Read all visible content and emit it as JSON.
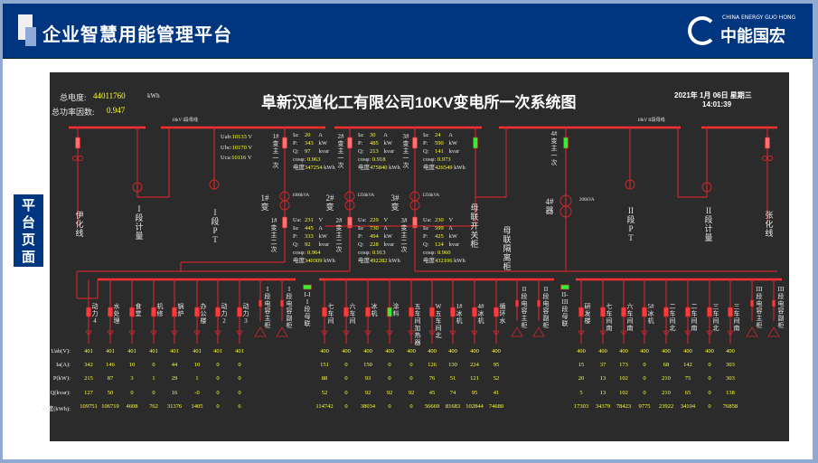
{
  "header": {
    "app_title": "企业智慧用能管理平台",
    "logo_en": "CHINA ENERGY GUO HONG",
    "logo_cn": "中能国宏"
  },
  "side_label": "平台页面",
  "diagram": {
    "title": "阜新汉道化工有限公司10KV变电所一次系统图",
    "total_energy_label": "总电度:",
    "total_energy": "44011760",
    "total_energy_unit": "kWh",
    "pf_label": "总功率因数:",
    "pf": "0.947",
    "date": "2021年 1月 06日 星期三",
    "time": "14:01:39",
    "bus1_label": "10kV I段母线",
    "bus2_label": "10kV II段母线",
    "pt1": {
      "Uab": "10133",
      "Ubc": "10170",
      "Uca": "10116",
      "unit": "V"
    },
    "top_feeders": [
      "伊化线",
      "I段计量",
      "I段PT",
      "母联开关柜",
      "母联隔离柜",
      "II段PT",
      "II段计量",
      "张化线",
      "4#器"
    ],
    "transformers": [
      {
        "name": "1#变",
        "cap": "1000kVA",
        "pri_label": "1#变主一次",
        "Ia": "20",
        "P": "343",
        "Q": "97",
        "cos": "0.963",
        "E": "347254",
        "sec_label": "1#变主二次",
        "Ua": "231",
        "Is": "445",
        "Ps": "333",
        "Qs": "92",
        "coss": "0.964",
        "Es": "340309"
      },
      {
        "name": "2#变",
        "cap": "1250kVA",
        "pri_label": "2#变主一次",
        "Ia": "30",
        "P": "485",
        "Q": "213",
        "cos": "0.918",
        "E": "475840",
        "sec_label": "2#变主二次",
        "Ua": "229",
        "Is": "730",
        "Ps": "494",
        "Qs": "228",
        "coss": "0.913",
        "Es": "492282"
      },
      {
        "name": "3#变",
        "cap": "1250kVA",
        "pri_label": "3#变主一次",
        "Ia": "24",
        "P": "590",
        "Q": "141",
        "cos": "0.973",
        "E": "426549",
        "sec_label": "3#变主二次",
        "Ua": "230",
        "Is": "599",
        "Ps": "425",
        "Qs": "124",
        "coss": "0.960",
        "Es": "432106"
      }
    ],
    "t4": {
      "pri_label": "4#变主一次",
      "cap": "200kVA"
    },
    "units": {
      "A": "A",
      "kW": "kW",
      "kvar": "kvar",
      "V": "V",
      "kWh": "kWh",
      "Ua": "Ua:",
      "Ia": "Ia:",
      "P": "P:",
      "Q": "Q:",
      "cos": "cosφ:",
      "E": "电度",
      "Uab": "Uab:",
      "Ubc": "Ubc:",
      "Uca": "Uca:"
    },
    "ties": [
      "I-II段母联",
      "II-III段母联"
    ],
    "capacitors": [
      "I段电容主柜",
      "I段电容副柜",
      "II段电容主柜",
      "II段电容副柜",
      "III段电容主柜",
      "III段电容副柜"
    ],
    "feeders": [
      {
        "name": "动力4",
        "state": "on"
      },
      {
        "name": "水处理",
        "state": "on"
      },
      {
        "name": "食堂",
        "state": "on"
      },
      {
        "name": "机修",
        "state": "on"
      },
      {
        "name": "锅炉",
        "state": "on"
      },
      {
        "name": "办公楼",
        "state": "on"
      },
      {
        "name": "动力2",
        "state": "on"
      },
      {
        "name": "动力3",
        "state": "on"
      },
      {
        "name": "七车间",
        "state": "on"
      },
      {
        "name": "六车间",
        "state": "on"
      },
      {
        "name": "冰机",
        "state": "on"
      },
      {
        "name": "涂料",
        "state": "off"
      },
      {
        "name": "五车间加热器",
        "state": "on"
      },
      {
        "name": "W五车间北",
        "state": "on"
      },
      {
        "name": "1#冰机",
        "state": "on"
      },
      {
        "name": "4#冰机",
        "state": "on"
      },
      {
        "name": "循环水",
        "state": "on"
      },
      {
        "name": "研发楼",
        "state": "on"
      },
      {
        "name": "七车间南",
        "state": "on"
      },
      {
        "name": "六车间南",
        "state": "on"
      },
      {
        "name": "5#冰机",
        "state": "on"
      },
      {
        "name": "二车间北",
        "state": "on"
      },
      {
        "name": "二车间南",
        "state": "on"
      },
      {
        "name": "三车间北",
        "state": "on"
      },
      {
        "name": "三车间南",
        "state": "on"
      }
    ],
    "table": {
      "row_labels": [
        "Uab(V):",
        "Ia(A):",
        "P(kW):",
        "Q(kvar):",
        "电度(kWh):"
      ],
      "rows": [
        [
          "401",
          "401",
          "401",
          "401",
          "401",
          "401",
          "401",
          "401",
          "400",
          "400",
          "400",
          "400",
          "400",
          "400",
          "400",
          "400",
          "400",
          "400",
          "400",
          "400",
          "400",
          "400",
          "400",
          "400",
          "400"
        ],
        [
          "342",
          "146",
          "10",
          "0",
          "44",
          "10",
          "0",
          "0",
          "151",
          "0",
          "150",
          "0",
          "0",
          "126",
          "130",
          "224",
          "95",
          "15",
          "37",
          "173",
          "0",
          "68",
          "142",
          "0",
          "303"
        ],
        [
          "215",
          "87",
          "3",
          "1",
          "29",
          "1",
          "0",
          "0",
          "88",
          "0",
          "93",
          "0",
          "0",
          "76",
          "51",
          "121",
          "52",
          "20",
          "13",
          "102",
          "0",
          "210",
          "75",
          "0",
          "303"
        ],
        [
          "127",
          "50",
          "0",
          "0",
          "16",
          "-0",
          "0",
          "0",
          "52",
          "0",
          "92",
          "92",
          "92",
          "45",
          "74",
          "95",
          "41",
          "5",
          "13",
          "102",
          "0",
          "210",
          "65",
          "0",
          "138"
        ],
        [
          "109751",
          "106719",
          "4608",
          "762",
          "31376",
          "1405",
          "0",
          "6",
          "114742",
          "0",
          "38034",
          "0",
          "0",
          "56669",
          "81683",
          "102844",
          "74680",
          "17303",
          "34379",
          "78423",
          "9775",
          "23922",
          "34104",
          "0",
          "76858"
        ]
      ]
    },
    "colors": {
      "line": "#c8282c",
      "bus": "#ff3030",
      "breaker_on": "#ff3a3a",
      "breaker_pink": "#ff7070",
      "breaker_off": "#33ee33",
      "value": "#ffff33",
      "bg": "#2b2b2b",
      "header": "#003580"
    }
  }
}
